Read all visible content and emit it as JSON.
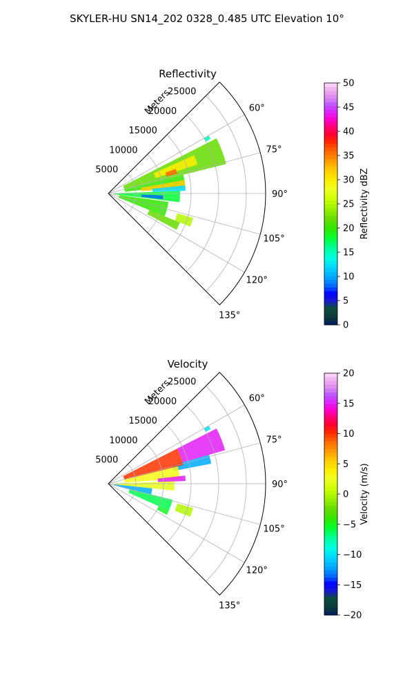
{
  "figure": {
    "title": "SKYLER-HU  SN14_202  0328_0.485 UTC Elevation 10°"
  },
  "chart_data": [
    {
      "type": "polar-sector",
      "title": "Reflectivity",
      "radius_label": "Meters",
      "angle_range_deg": [
        45,
        135
      ],
      "radius_max": 28500,
      "angle_ticks": [
        "60°",
        "75°",
        "90°",
        "105°",
        "120°",
        "135°"
      ],
      "angle_tick_values": [
        60,
        75,
        90,
        105,
        120,
        135
      ],
      "radius_ticks": [
        "5000",
        "10000",
        "15000",
        "20000",
        "25000"
      ],
      "radius_tick_values": [
        5000,
        10000,
        15000,
        20000,
        25000
      ],
      "colorbar": {
        "label": "Reflectivity dBZ",
        "range": [
          0,
          50
        ],
        "ticks": [
          "0",
          "5",
          "10",
          "15",
          "20",
          "25",
          "30",
          "35",
          "40",
          "45",
          "50"
        ],
        "tick_values": [
          0,
          5,
          10,
          15,
          20,
          25,
          30,
          35,
          40,
          45,
          50
        ]
      },
      "echo_regions": [
        {
          "az": [
            60,
            62
          ],
          "r": [
            20000,
            21000
          ],
          "value": 15
        },
        {
          "az": [
            63,
            76
          ],
          "r": [
            3000,
            22000
          ],
          "value": 22
        },
        {
          "az": [
            66,
            72
          ],
          "r": [
            9000,
            17000
          ],
          "value": 30
        },
        {
          "az": [
            70,
            74
          ],
          "r": [
            11000,
            13000
          ],
          "value": 36
        },
        {
          "az": [
            76,
            84
          ],
          "r": [
            3000,
            14000
          ],
          "value": 20
        },
        {
          "az": [
            80,
            86
          ],
          "r": [
            6000,
            14000
          ],
          "value": 32
        },
        {
          "az": [
            84,
            88
          ],
          "r": [
            8000,
            14000
          ],
          "value": 12
        },
        {
          "az": [
            88,
            97
          ],
          "r": [
            1000,
            13000
          ],
          "value": 18
        },
        {
          "az": [
            92,
            96
          ],
          "r": [
            6000,
            10000
          ],
          "value": 8
        },
        {
          "az": [
            98,
            112
          ],
          "r": [
            2000,
            11000
          ],
          "value": 20
        },
        {
          "az": [
            112,
            118
          ],
          "r": [
            8000,
            14000
          ],
          "value": 22
        },
        {
          "az": [
            106,
            112
          ],
          "r": [
            13000,
            16000
          ],
          "value": 25
        }
      ]
    },
    {
      "type": "polar-sector",
      "title": "Velocity",
      "radius_label": "Meters",
      "angle_range_deg": [
        45,
        135
      ],
      "radius_max": 28500,
      "angle_ticks": [
        "60°",
        "75°",
        "90°",
        "105°",
        "120°",
        "135°"
      ],
      "angle_tick_values": [
        60,
        75,
        90,
        105,
        120,
        135
      ],
      "radius_ticks": [
        "5000",
        "10000",
        "15000",
        "20000",
        "25000"
      ],
      "radius_tick_values": [
        5000,
        10000,
        15000,
        20000,
        25000
      ],
      "colorbar": {
        "label": "Velocity (m/s)",
        "range": [
          -20,
          20
        ],
        "ticks": [
          "−20",
          "−15",
          "−10",
          "−5",
          "0",
          "5",
          "10",
          "15",
          "20"
        ],
        "tick_values": [
          -20,
          -15,
          -10,
          -5,
          0,
          5,
          10,
          15,
          20
        ]
      },
      "echo_regions": [
        {
          "az": [
            60,
            62
          ],
          "r": [
            20000,
            21000
          ],
          "value": -10
        },
        {
          "az": [
            63,
            74
          ],
          "r": [
            14000,
            22000
          ],
          "value": 15
        },
        {
          "az": [
            74,
            79
          ],
          "r": [
            12000,
            19000
          ],
          "value": -12
        },
        {
          "az": [
            63,
            76
          ],
          "r": [
            3000,
            14000
          ],
          "value": 10
        },
        {
          "az": [
            76,
            86
          ],
          "r": [
            3000,
            13000
          ],
          "value": 3
        },
        {
          "az": [
            84,
            88
          ],
          "r": [
            9000,
            14000
          ],
          "value": 15
        },
        {
          "az": [
            88,
            96
          ],
          "r": [
            1000,
            12000
          ],
          "value": 2
        },
        {
          "az": [
            96,
            104
          ],
          "r": [
            1000,
            8000
          ],
          "value": -12
        },
        {
          "az": [
            104,
            114
          ],
          "r": [
            4000,
            12000
          ],
          "value": -6
        },
        {
          "az": [
            106,
            112
          ],
          "r": [
            13000,
            16000
          ],
          "value": 0
        },
        {
          "az": [
            114,
            118
          ],
          "r": [
            10000,
            12000
          ],
          "value": -5
        }
      ]
    }
  ]
}
